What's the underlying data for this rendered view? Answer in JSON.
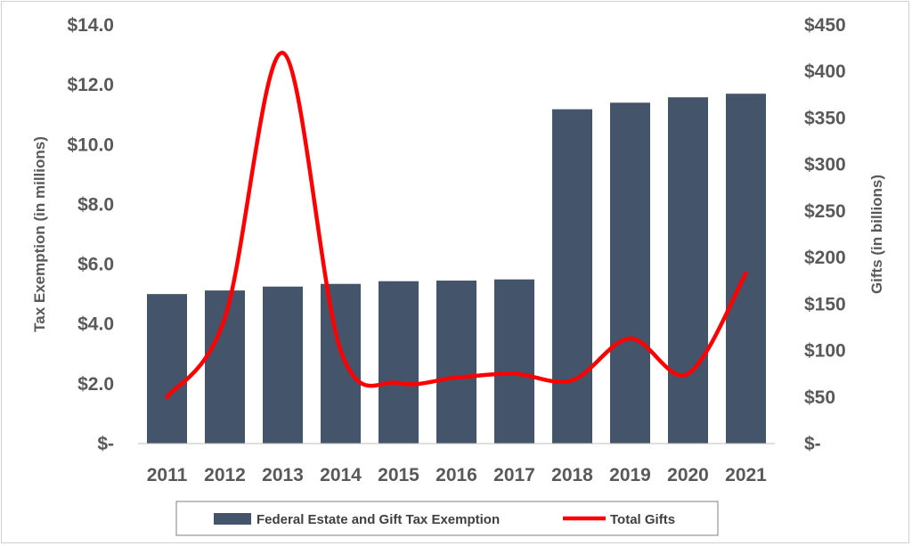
{
  "chart_data": {
    "type": "bar",
    "categories": [
      "2011",
      "2012",
      "2013",
      "2014",
      "2015",
      "2016",
      "2017",
      "2018",
      "2019",
      "2020",
      "2021"
    ],
    "series": [
      {
        "name": "Federal Estate and Gift Tax Exemption",
        "type": "bar",
        "axis": "left",
        "color": "#44546a",
        "values": [
          5.0,
          5.12,
          5.25,
          5.34,
          5.43,
          5.45,
          5.49,
          11.18,
          11.4,
          11.58,
          11.7
        ]
      },
      {
        "name": "Total Gifts",
        "type": "line",
        "axis": "right",
        "color": "#ff0000",
        "smooth": true,
        "values": [
          50,
          135,
          420,
          100,
          65,
          71,
          75,
          68,
          113,
          75,
          183
        ]
      }
    ],
    "ylabel": "Tax Exemption (in millions)",
    "y2label": "Gifts (in billions)",
    "ylim": [
      0,
      14
    ],
    "y2lim": [
      0,
      450
    ],
    "yticks": [
      "$-",
      "$2.0",
      "$4.0",
      "$6.0",
      "$8.0",
      "$10.0",
      "$12.0",
      "$14.0"
    ],
    "y2ticks": [
      "$-",
      "$50",
      "$100",
      "$150",
      "$200",
      "$250",
      "$300",
      "$350",
      "$400",
      "$450"
    ],
    "grid": false,
    "legend_position": "bottom"
  }
}
